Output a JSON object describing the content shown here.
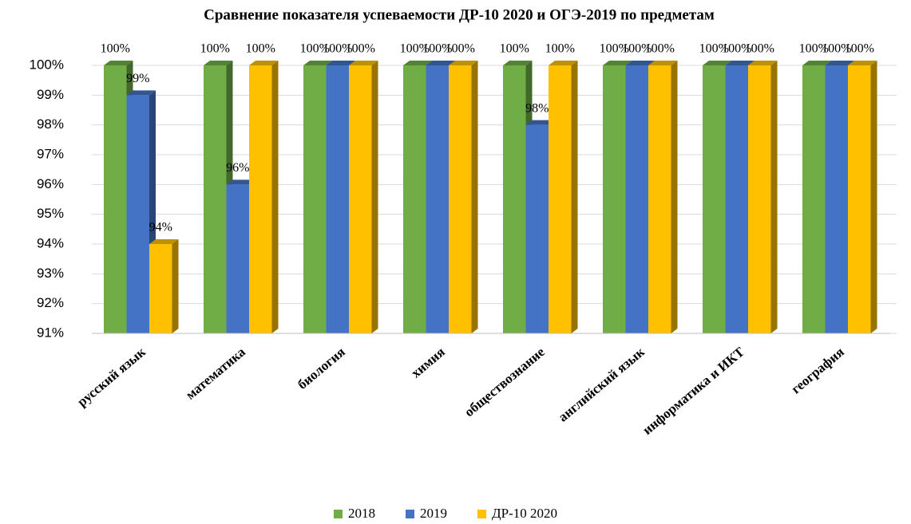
{
  "chart_data": {
    "type": "bar3d",
    "title": "Сравнение показателя успеваемости ДР-10 2020 и ОГЭ-2019 по предметам",
    "categories": [
      "русский язык",
      "математика",
      "биология",
      "химия",
      "обществознание",
      "английский язык",
      "информатика и ИКТ",
      "география"
    ],
    "series": [
      {
        "name": "2018",
        "color": "#70ad47",
        "values": [
          100,
          100,
          100,
          100,
          100,
          100,
          100,
          100
        ],
        "value_labels": [
          "100%",
          "100%",
          "100%",
          "100%",
          "100%",
          "100%",
          "100%",
          "100%"
        ]
      },
      {
        "name": "2019",
        "color": "#4472c4",
        "values": [
          99,
          96,
          100,
          100,
          98,
          100,
          100,
          100
        ],
        "value_labels": [
          "99%",
          "96%",
          "100%",
          "100%",
          "98%",
          "100%",
          "100%",
          "100%"
        ]
      },
      {
        "name": "ДР-10 2020",
        "color": "#ffc000",
        "values": [
          94,
          100,
          100,
          100,
          100,
          100,
          100,
          100
        ],
        "value_labels": [
          "94%",
          "100%",
          "100%",
          "100%",
          "100%",
          "100%",
          "100%",
          "100%"
        ]
      }
    ],
    "ylim": [
      91,
      100
    ],
    "yticks": [
      {
        "value": 91,
        "label": "91%"
      },
      {
        "value": 92,
        "label": "92%"
      },
      {
        "value": 93,
        "label": "93%"
      },
      {
        "value": 94,
        "label": "94%"
      },
      {
        "value": 95,
        "label": "95%"
      },
      {
        "value": 96,
        "label": "96%"
      },
      {
        "value": 97,
        "label": "97%"
      },
      {
        "value": 98,
        "label": "98%"
      },
      {
        "value": 99,
        "label": "99%"
      },
      {
        "value": 100,
        "label": "100%"
      }
    ],
    "grid": true,
    "legend": "bottom"
  }
}
